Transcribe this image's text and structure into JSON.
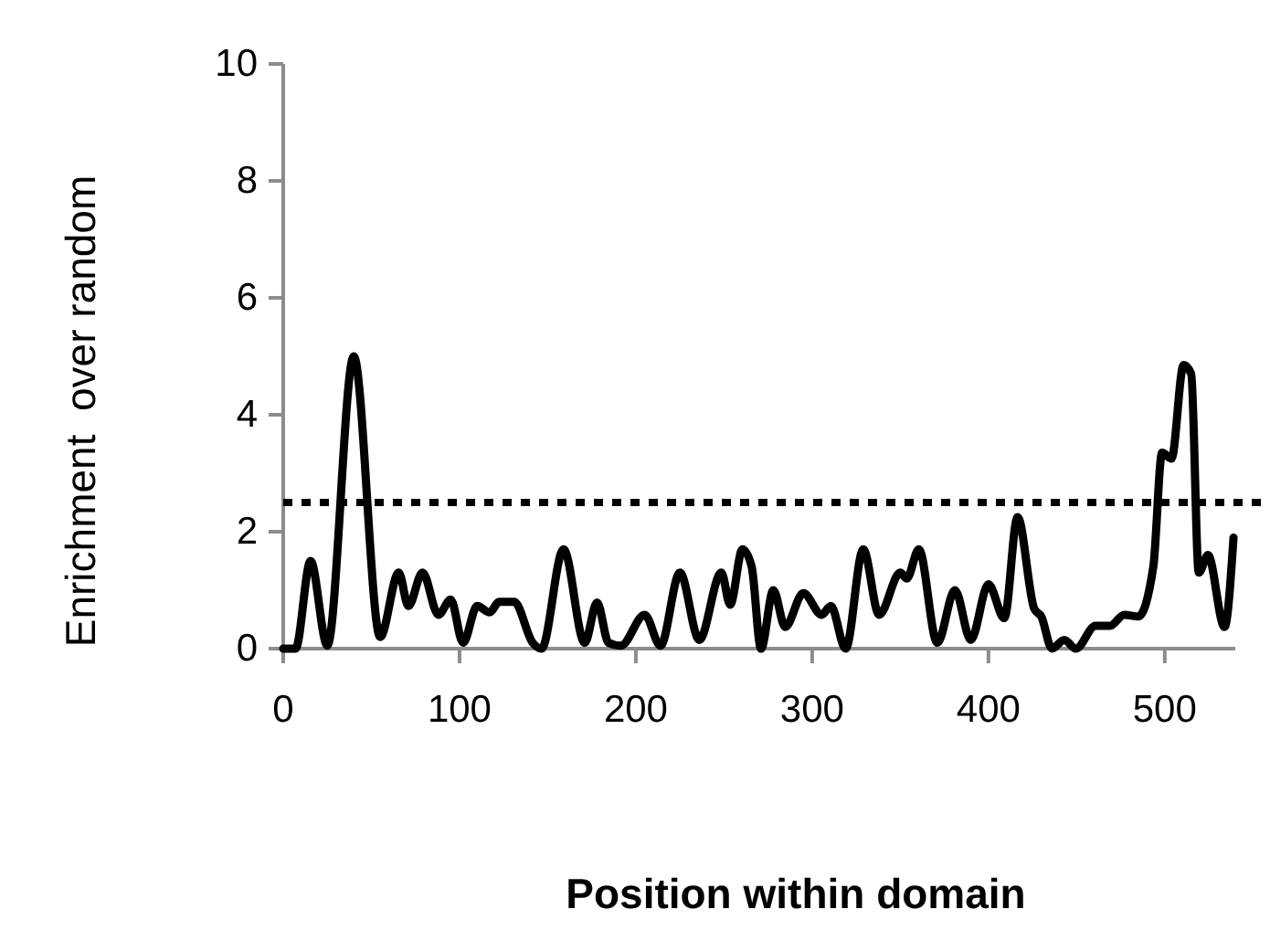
{
  "chart_data": {
    "type": "line",
    "xlabel": "Position within domain",
    "ylabel": "Enrichment  over random",
    "xlim": [
      0,
      540
    ],
    "xticks": [
      0,
      100,
      200,
      300,
      400,
      500
    ],
    "ylim": [
      0,
      10
    ],
    "yticks": [
      0,
      2,
      4,
      6,
      8,
      10
    ],
    "grid": false,
    "marker": "none",
    "line_style": "solid",
    "ref_lines": [
      {
        "axis": "y",
        "value": 2.5,
        "color": "#000000",
        "line_style": "dotted"
      }
    ],
    "series": [
      {
        "color": "#000000",
        "x": [
          0,
          7,
          15.5,
          25,
          40,
          55,
          65.5,
          71,
          79,
          88,
          95,
          102,
          110,
          117,
          122.5,
          131,
          141.5,
          146.5,
          159,
          171,
          178,
          184.5,
          191.5,
          205,
          214,
          225,
          236,
          248.5,
          253.5,
          260.5,
          265.7,
          271,
          278,
          284.7,
          295,
          305.4,
          310.6,
          319,
          329,
          338,
          350,
          353.7,
          360.5,
          371,
          381,
          390,
          400,
          409,
          416.5,
          426,
          430,
          436,
          443,
          449.6,
          460.7,
          469,
          477,
          485,
          493.5,
          498.5,
          503.8,
          510.7,
          515,
          519.3,
          524.5,
          533.9,
          539
        ],
        "values": [
          0,
          0,
          1.5,
          0.05,
          5.0,
          0.2,
          1.3,
          0.73,
          1.3,
          0.58,
          0.84,
          0.1,
          0.73,
          0.62,
          0.8,
          0.8,
          0.1,
          0,
          1.7,
          0.1,
          0.79,
          0.1,
          0.05,
          0.58,
          0.05,
          1.3,
          0.15,
          1.3,
          0.75,
          1.7,
          1.4,
          0,
          1.0,
          0.37,
          0.95,
          0.58,
          0.73,
          0,
          1.7,
          0.58,
          1.3,
          1.2,
          1.7,
          0.1,
          1.0,
          0.15,
          1.1,
          0.52,
          2.25,
          0.68,
          0.55,
          0,
          0.15,
          0,
          0.39,
          0.39,
          0.58,
          0.55,
          1.4,
          3.35,
          3.25,
          4.85,
          4.7,
          1.3,
          1.6,
          0.37,
          1.9
        ]
      }
    ]
  }
}
